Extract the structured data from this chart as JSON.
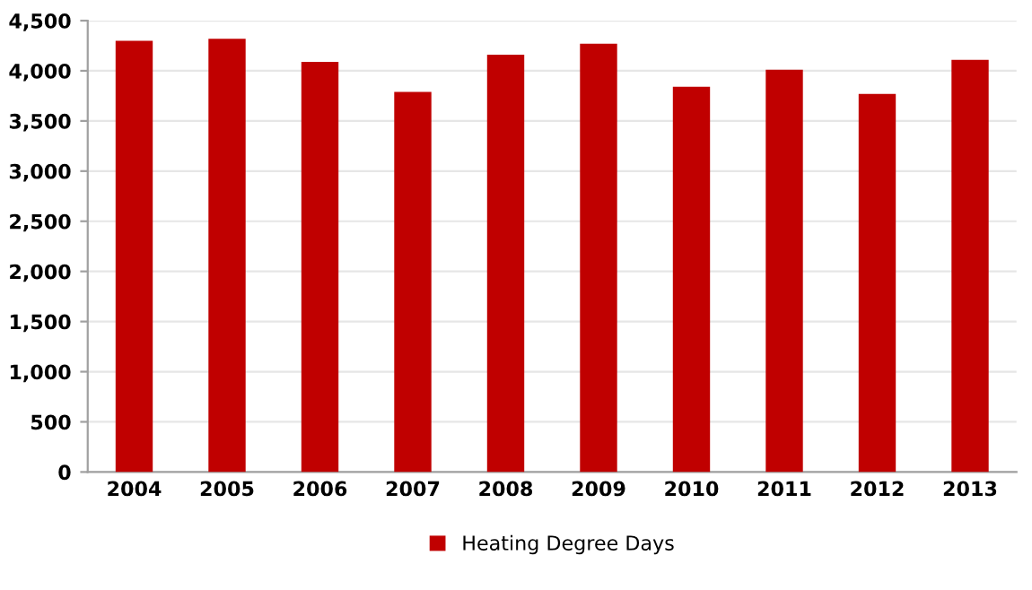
{
  "chart_data": {
    "type": "bar",
    "categories": [
      "2004",
      "2005",
      "2006",
      "2007",
      "2008",
      "2009",
      "2010",
      "2011",
      "2012",
      "2013"
    ],
    "series": [
      {
        "name": "Heating Degree Days",
        "color": "#c00000",
        "values": [
          4300,
          4320,
          4090,
          3790,
          4160,
          4270,
          3840,
          4010,
          3770,
          4110
        ]
      }
    ],
    "ylim": [
      0,
      4500
    ],
    "yticks": [
      {
        "value": 0,
        "label": "0"
      },
      {
        "value": 500,
        "label": "500"
      },
      {
        "value": 1000,
        "label": "1,000"
      },
      {
        "value": 1500,
        "label": "1,500"
      },
      {
        "value": 2000,
        "label": "2,000"
      },
      {
        "value": 2500,
        "label": "2,500"
      },
      {
        "value": 3000,
        "label": "3,000"
      },
      {
        "value": 3500,
        "label": "3,500"
      },
      {
        "value": 4000,
        "label": "4,000"
      },
      {
        "value": 4500,
        "label": "4,500"
      }
    ],
    "grid": "y",
    "legend": "bottom"
  }
}
